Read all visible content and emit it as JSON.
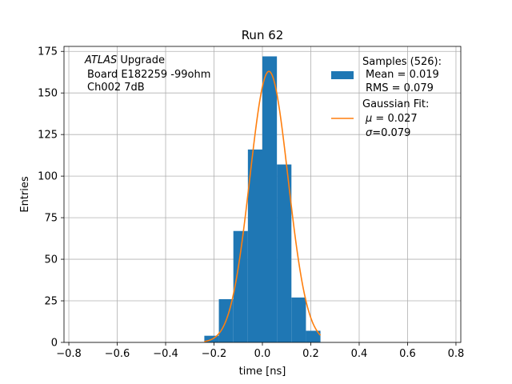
{
  "chart_data": {
    "type": "bar",
    "title": "Run 62",
    "xlabel": "time [ns]",
    "ylabel": "Entries",
    "xlim": [
      -0.82,
      0.82
    ],
    "ylim": [
      0,
      178
    ],
    "grid": true,
    "legend_position": "top-right",
    "x_ticks": [
      -0.8,
      -0.6,
      -0.4,
      -0.2,
      0.0,
      0.2,
      0.4,
      0.6,
      0.8
    ],
    "x_tick_labels": [
      "−0.8",
      "−0.6",
      "−0.4",
      "−0.2",
      "0.0",
      "0.2",
      "0.4",
      "0.6",
      "0.8"
    ],
    "y_ticks": [
      0,
      25,
      50,
      75,
      100,
      125,
      150,
      175
    ],
    "y_tick_labels": [
      "0",
      "25",
      "50",
      "75",
      "100",
      "125",
      "150",
      "175"
    ],
    "annotation": {
      "line1_italic": "ATLAS",
      "line1_rest": " Upgrade",
      "line2": "Board E182259 -99ohm",
      "line3": "Ch002 7dB"
    },
    "histogram": {
      "name": "Samples (526):",
      "color": "#1f77b4",
      "bin_edges": [
        -0.24,
        -0.18,
        -0.12,
        -0.06,
        0.0,
        0.06,
        0.12,
        0.18,
        0.24
      ],
      "counts": [
        4,
        26,
        67,
        116,
        172,
        107,
        27,
        7
      ],
      "stats_mean": "Mean = 0.019",
      "stats_rms": "RMS = 0.079"
    },
    "fit": {
      "name": "Gaussian Fit:",
      "color": "#ff7f0e",
      "mu": 0.027,
      "sigma": 0.079,
      "peak": 163,
      "x_range": [
        -0.24,
        0.24
      ],
      "mu_label": " = 0.027",
      "sigma_label": "=0.079"
    }
  }
}
